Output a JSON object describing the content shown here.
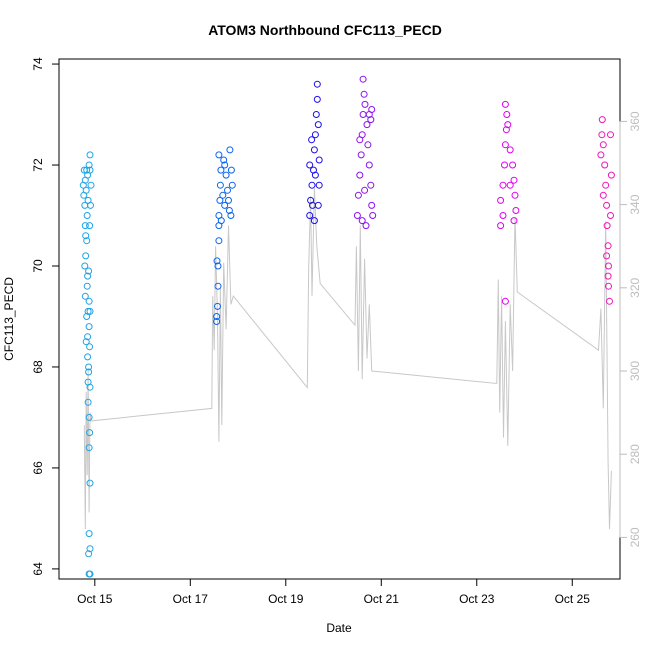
{
  "chart_data": {
    "type": "scatter",
    "title": "ATOM3 Northbound CFC113_PECD",
    "xlabel": "Date",
    "ylabel": "CFC113_PECD",
    "x_ticks": [
      {
        "day": 15,
        "label": "Oct 15"
      },
      {
        "day": 17,
        "label": "Oct 17"
      },
      {
        "day": 19,
        "label": "Oct 19"
      },
      {
        "day": 21,
        "label": "Oct 21"
      },
      {
        "day": 23,
        "label": "Oct 23"
      },
      {
        "day": 25,
        "label": "Oct 25"
      }
    ],
    "xlim_day": [
      14.25,
      26.0
    ],
    "ylim": [
      63.8,
      74.1
    ],
    "y_ticks": [
      64,
      66,
      68,
      70,
      72,
      74
    ],
    "y2_label": "",
    "y2_ticks": [
      260,
      280,
      300,
      320,
      340,
      360
    ],
    "y2_lim": [
      250,
      375
    ],
    "grid": false,
    "series": [
      {
        "color": "#1fa3e6",
        "x_range_day": [
          14.75,
          14.93
        ],
        "points": [
          [
            14.78,
            71.9
          ],
          [
            14.8,
            71.7
          ],
          [
            14.82,
            71.5
          ],
          [
            14.79,
            71.2
          ],
          [
            14.84,
            71.0
          ],
          [
            14.8,
            70.8
          ],
          [
            14.85,
            71.8
          ],
          [
            14.88,
            72.0
          ],
          [
            14.9,
            72.2
          ],
          [
            14.92,
            71.6
          ],
          [
            14.86,
            71.3
          ],
          [
            14.83,
            70.5
          ],
          [
            14.81,
            70.2
          ],
          [
            14.87,
            69.9
          ],
          [
            14.84,
            69.6
          ],
          [
            14.8,
            69.4
          ],
          [
            14.86,
            69.1
          ],
          [
            14.88,
            68.8
          ],
          [
            14.82,
            68.5
          ],
          [
            14.85,
            68.2
          ],
          [
            14.87,
            67.9
          ],
          [
            14.9,
            67.6
          ],
          [
            14.86,
            67.3
          ],
          [
            14.88,
            67.0
          ],
          [
            14.89,
            66.7
          ],
          [
            14.88,
            66.4
          ],
          [
            14.9,
            65.7
          ],
          [
            14.88,
            64.7
          ],
          [
            14.9,
            64.4
          ],
          [
            14.87,
            64.3
          ],
          [
            14.88,
            63.9
          ],
          [
            14.9,
            63.9
          ],
          [
            14.83,
            69.0
          ],
          [
            14.85,
            68.6
          ],
          [
            14.89,
            70.8
          ],
          [
            14.91,
            71.2
          ],
          [
            14.77,
            71.4
          ],
          [
            14.79,
            70.0
          ],
          [
            14.83,
            71.9
          ],
          [
            14.9,
            71.9
          ],
          [
            14.87,
            68.0
          ],
          [
            14.86,
            67.7
          ],
          [
            14.88,
            69.3
          ],
          [
            14.9,
            69.1
          ],
          [
            14.76,
            71.6
          ],
          [
            14.81,
            70.6
          ],
          [
            14.85,
            69.8
          ],
          [
            14.89,
            68.4
          ]
        ]
      },
      {
        "color": "#0a66f2",
        "x_range_day": [
          17.5,
          17.9
        ],
        "points": [
          [
            17.55,
            69.0
          ],
          [
            17.55,
            68.9
          ],
          [
            17.57,
            69.2
          ],
          [
            17.58,
            69.6
          ],
          [
            17.56,
            70.1
          ],
          [
            17.6,
            70.5
          ],
          [
            17.6,
            70.8
          ],
          [
            17.6,
            71.0
          ],
          [
            17.62,
            71.3
          ],
          [
            17.63,
            71.6
          ],
          [
            17.64,
            71.9
          ],
          [
            17.6,
            72.2
          ],
          [
            17.7,
            72.1
          ],
          [
            17.72,
            72.0
          ],
          [
            17.75,
            71.8
          ],
          [
            17.78,
            71.5
          ],
          [
            17.8,
            71.3
          ],
          [
            17.82,
            71.1
          ],
          [
            17.85,
            71.0
          ],
          [
            17.88,
            71.6
          ],
          [
            17.83,
            72.3
          ],
          [
            17.86,
            71.9
          ],
          [
            17.68,
            71.4
          ],
          [
            17.72,
            71.2
          ],
          [
            17.65,
            70.9
          ],
          [
            17.58,
            70.0
          ]
        ]
      },
      {
        "color": "#1c10ee",
        "x_range_day": [
          19.45,
          19.72
        ],
        "points": [
          [
            19.5,
            71.0
          ],
          [
            19.52,
            71.3
          ],
          [
            19.55,
            71.6
          ],
          [
            19.58,
            71.9
          ],
          [
            19.6,
            72.3
          ],
          [
            19.62,
            72.6
          ],
          [
            19.64,
            73.0
          ],
          [
            19.66,
            73.3
          ],
          [
            19.66,
            73.6
          ],
          [
            19.68,
            72.8
          ],
          [
            19.7,
            72.1
          ],
          [
            19.7,
            71.6
          ],
          [
            19.68,
            71.2
          ],
          [
            19.56,
            71.2
          ],
          [
            19.62,
            71.8
          ],
          [
            19.5,
            72.0
          ],
          [
            19.54,
            72.5
          ],
          [
            19.6,
            70.9
          ]
        ]
      },
      {
        "color": "#8c12ee",
        "x_range_day": [
          20.45,
          20.85
        ],
        "points": [
          [
            20.5,
            71.0
          ],
          [
            20.52,
            71.4
          ],
          [
            20.55,
            71.8
          ],
          [
            20.58,
            72.2
          ],
          [
            20.6,
            72.6
          ],
          [
            20.62,
            73.0
          ],
          [
            20.64,
            73.4
          ],
          [
            20.62,
            73.7
          ],
          [
            20.66,
            73.2
          ],
          [
            20.7,
            72.8
          ],
          [
            20.72,
            72.4
          ],
          [
            20.75,
            72.0
          ],
          [
            20.78,
            71.6
          ],
          [
            20.8,
            71.2
          ],
          [
            20.82,
            71.0
          ],
          [
            20.8,
            73.1
          ],
          [
            20.78,
            72.9
          ],
          [
            20.6,
            70.9
          ],
          [
            20.68,
            70.8
          ],
          [
            20.55,
            72.5
          ],
          [
            20.65,
            71.5
          ],
          [
            20.75,
            73.0
          ]
        ]
      },
      {
        "color": "#e000f2",
        "x_range_day": [
          23.45,
          23.85
        ],
        "points": [
          [
            23.5,
            70.8
          ],
          [
            23.5,
            71.3
          ],
          [
            23.55,
            71.6
          ],
          [
            23.58,
            72.0
          ],
          [
            23.6,
            72.4
          ],
          [
            23.62,
            72.7
          ],
          [
            23.6,
            73.2
          ],
          [
            23.63,
            73.0
          ],
          [
            23.65,
            72.8
          ],
          [
            23.7,
            72.3
          ],
          [
            23.75,
            72.0
          ],
          [
            23.78,
            71.7
          ],
          [
            23.8,
            71.4
          ],
          [
            23.82,
            71.1
          ],
          [
            23.78,
            70.9
          ],
          [
            23.6,
            69.3
          ],
          [
            23.55,
            71.0
          ],
          [
            23.7,
            71.6
          ]
        ]
      },
      {
        "color": "#ef16b8",
        "x_range_day": [
          25.55,
          25.85
        ],
        "points": [
          [
            25.6,
            72.2
          ],
          [
            25.62,
            72.6
          ],
          [
            25.63,
            72.9
          ],
          [
            25.65,
            72.4
          ],
          [
            25.68,
            72.0
          ],
          [
            25.7,
            71.6
          ],
          [
            25.72,
            71.2
          ],
          [
            25.73,
            70.8
          ],
          [
            25.75,
            70.4
          ],
          [
            25.76,
            70.0
          ],
          [
            25.76,
            69.6
          ],
          [
            25.78,
            69.3
          ],
          [
            25.8,
            71.0
          ],
          [
            25.82,
            71.8
          ],
          [
            25.8,
            72.6
          ],
          [
            25.65,
            71.4
          ],
          [
            25.72,
            70.2
          ],
          [
            25.75,
            69.8
          ]
        ]
      }
    ],
    "secondary_line": {
      "color": "#c8c8c8",
      "points": [
        [
          14.78,
          287
        ],
        [
          14.8,
          262
        ],
        [
          14.82,
          295
        ],
        [
          14.84,
          275
        ],
        [
          14.86,
          300
        ],
        [
          14.88,
          266
        ],
        [
          14.9,
          290
        ],
        [
          14.92,
          288
        ],
        [
          17.45,
          291
        ],
        [
          17.47,
          318
        ],
        [
          17.5,
          305
        ],
        [
          17.53,
          330
        ],
        [
          17.57,
          313
        ],
        [
          17.6,
          283
        ],
        [
          17.63,
          320
        ],
        [
          17.66,
          287
        ],
        [
          17.7,
          326
        ],
        [
          17.75,
          310
        ],
        [
          17.8,
          335
        ],
        [
          17.85,
          316
        ],
        [
          17.9,
          318
        ],
        [
          19.45,
          296
        ],
        [
          19.48,
          325
        ],
        [
          19.52,
          342
        ],
        [
          19.55,
          318
        ],
        [
          19.6,
          344
        ],
        [
          19.65,
          330
        ],
        [
          19.72,
          321
        ],
        [
          20.45,
          311
        ],
        [
          20.48,
          330
        ],
        [
          20.52,
          300
        ],
        [
          20.56,
          335
        ],
        [
          20.6,
          298
        ],
        [
          20.65,
          327
        ],
        [
          20.7,
          303
        ],
        [
          20.75,
          316
        ],
        [
          20.8,
          300
        ],
        [
          23.42,
          297
        ],
        [
          23.45,
          322
        ],
        [
          23.48,
          290
        ],
        [
          23.52,
          318
        ],
        [
          23.56,
          284
        ],
        [
          23.6,
          312
        ],
        [
          23.65,
          282
        ],
        [
          23.7,
          316
        ],
        [
          23.75,
          300
        ],
        [
          23.8,
          337
        ],
        [
          23.85,
          319
        ],
        [
          25.55,
          305
        ],
        [
          25.6,
          315
        ],
        [
          25.65,
          291
        ],
        [
          25.7,
          336
        ],
        [
          25.75,
          278
        ],
        [
          25.78,
          262
        ],
        [
          25.82,
          276
        ]
      ]
    }
  }
}
